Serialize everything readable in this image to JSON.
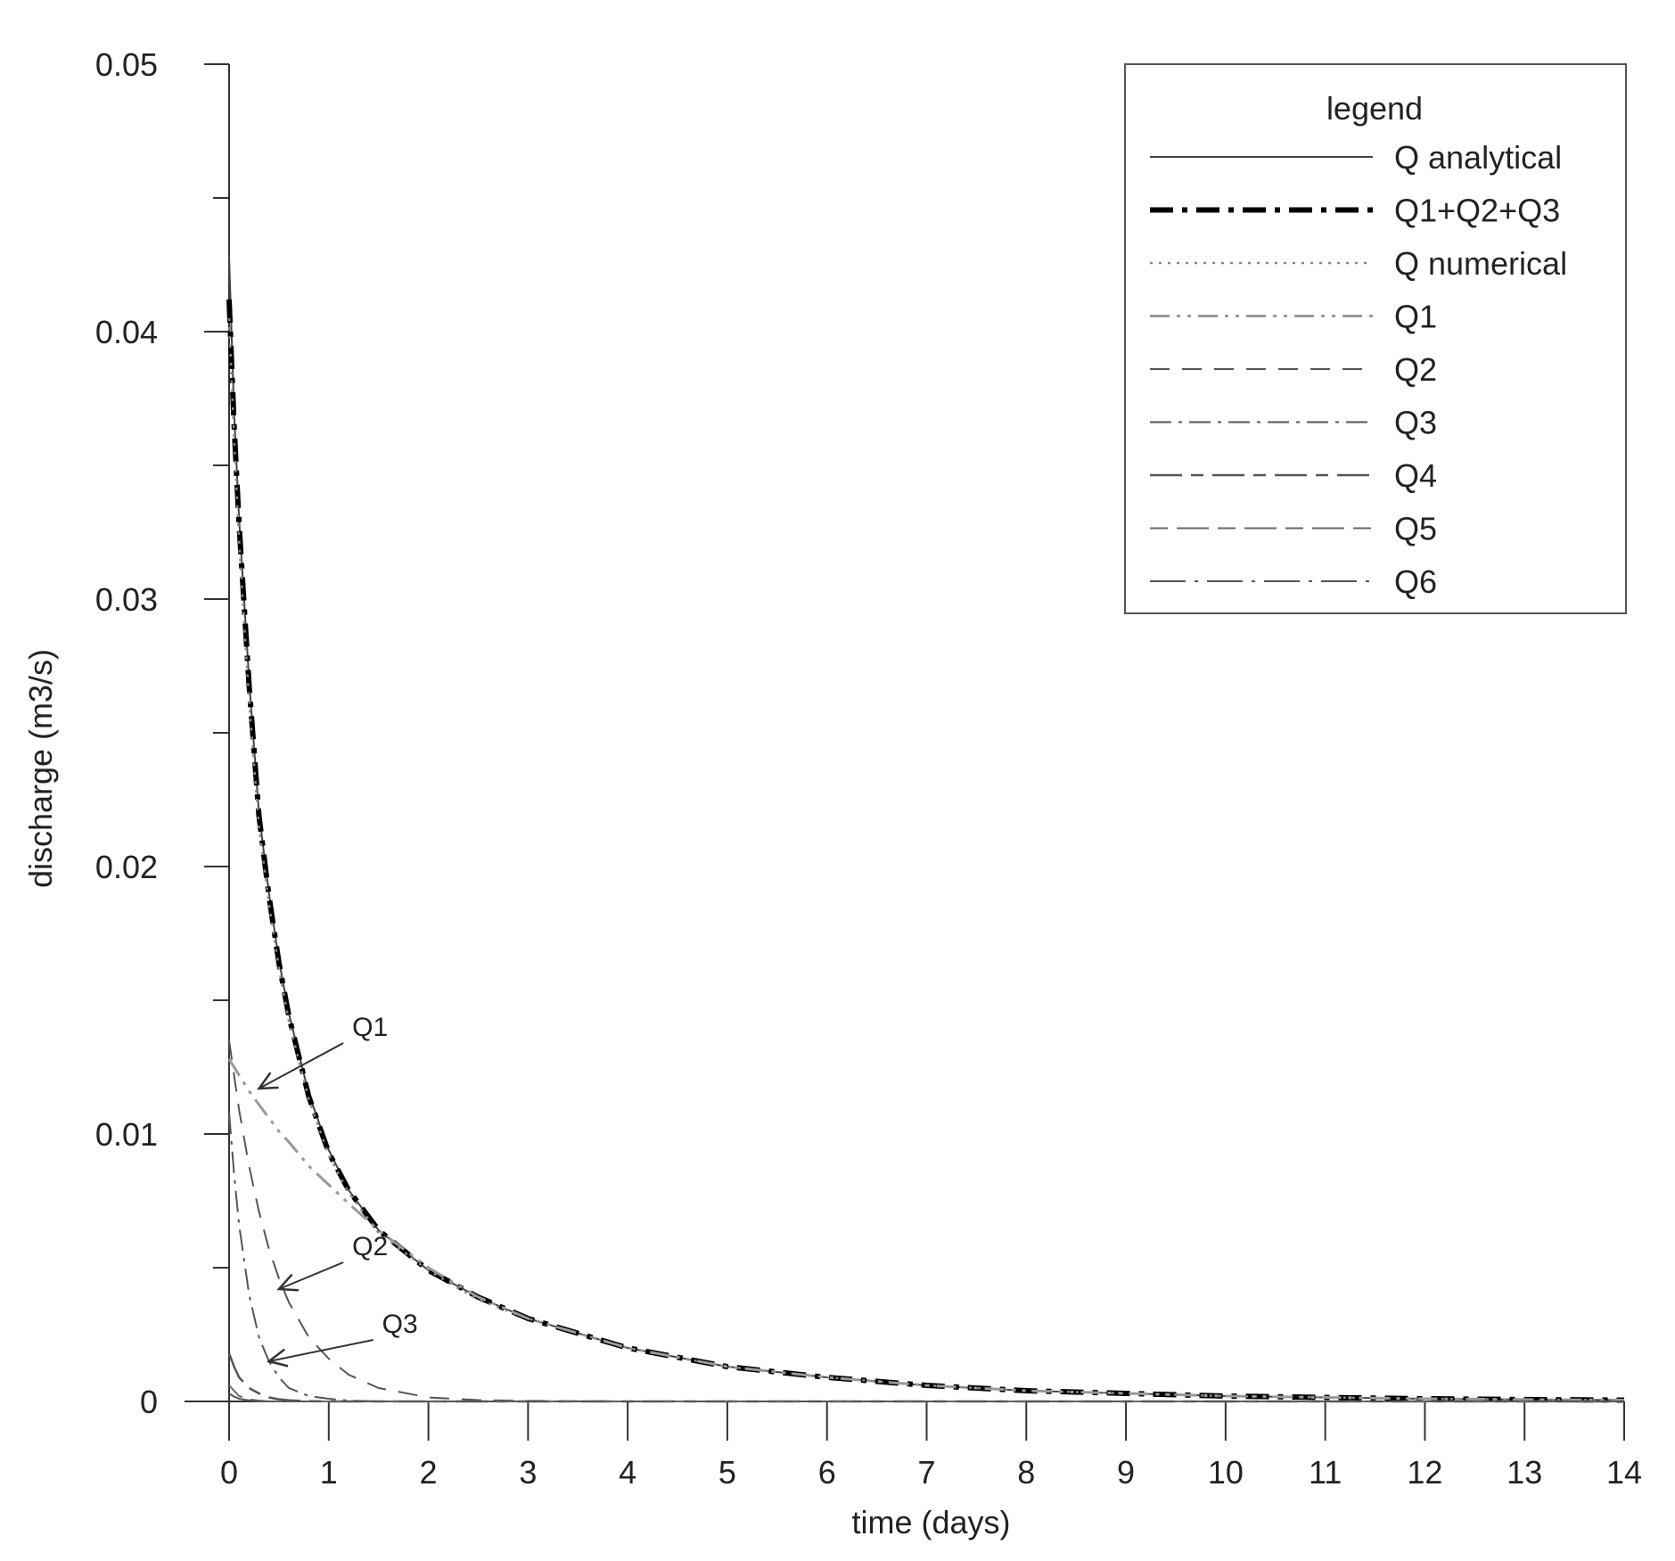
{
  "chart_data": {
    "type": "line",
    "xlabel": "time (days)",
    "ylabel": "discharge (m3/s)",
    "xlim": [
      0,
      14
    ],
    "ylim": [
      0,
      0.05
    ],
    "x_ticks": [
      "0",
      "1",
      "2",
      "3",
      "4",
      "5",
      "6",
      "7",
      "8",
      "9",
      "10",
      "11",
      "12",
      "13",
      "14"
    ],
    "y_ticks": [
      "0",
      "0.01",
      "0.02",
      "0.03",
      "0.04",
      "0.05"
    ],
    "x_tick_values": [
      0,
      1,
      2,
      3,
      4,
      5,
      6,
      7,
      8,
      9,
      10,
      11,
      12,
      13,
      14
    ],
    "y_tick_values": [
      0,
      0.01,
      0.02,
      0.03,
      0.04,
      0.05
    ],
    "grid": false,
    "legend": {
      "title": "legend",
      "placement": "top-right"
    },
    "x": [
      0,
      0.05,
      0.1,
      0.2,
      0.3,
      0.4,
      0.5,
      0.6,
      0.8,
      1.0,
      1.2,
      1.5,
      2.0,
      2.5,
      3.0,
      4.0,
      5.0,
      6.0,
      7.0,
      8.0,
      9.0,
      10.0,
      11.0,
      12.0,
      13.0,
      14.0
    ],
    "series": [
      {
        "name": "Q analytical",
        "style": "solid",
        "values": [
          0.0428,
          0.037,
          0.033,
          0.027,
          0.022,
          0.019,
          0.0165,
          0.0145,
          0.0115,
          0.0094,
          0.0079,
          0.0064,
          0.0049,
          0.0039,
          0.0031,
          0.002,
          0.0013,
          0.0009,
          0.0006,
          0.0004,
          0.0003,
          0.0002,
          0.00015,
          0.0001,
          7e-05,
          5e-05
        ]
      },
      {
        "name": "Q1+Q2+Q3",
        "style": "thick-dashdot",
        "values": [
          0.0412,
          0.0365,
          0.0328,
          0.0268,
          0.0219,
          0.0189,
          0.0164,
          0.0144,
          0.0114,
          0.0093,
          0.0079,
          0.0064,
          0.0049,
          0.0039,
          0.0031,
          0.002,
          0.0013,
          0.0009,
          0.0006,
          0.0004,
          0.0003,
          0.0002,
          0.00015,
          0.0001,
          7e-05,
          5e-05
        ]
      },
      {
        "name": "Q numerical",
        "style": "dotted",
        "values": [
          0.0405,
          0.036,
          0.0322,
          0.0262,
          0.0215,
          0.0186,
          0.0162,
          0.0142,
          0.0113,
          0.0092,
          0.0078,
          0.0063,
          0.0049,
          0.0038,
          0.0031,
          0.002,
          0.0013,
          0.0009,
          0.0006,
          0.0004,
          0.0003,
          0.0002,
          0.00015,
          0.0001,
          7e-05,
          5e-05
        ]
      },
      {
        "name": "Q1",
        "style": "dashdotdot",
        "values": [
          0.0128,
          0.0125,
          0.0122,
          0.0116,
          0.0111,
          0.0106,
          0.0101,
          0.0097,
          0.0088,
          0.0081,
          0.0074,
          0.0064,
          0.005,
          0.0039,
          0.0031,
          0.002,
          0.0013,
          0.0009,
          0.0006,
          0.0004,
          0.0003,
          0.0002,
          0.00015,
          0.0001,
          7e-05,
          5e-05
        ]
      },
      {
        "name": "Q2",
        "style": "dashed",
        "values": [
          0.0135,
          0.0122,
          0.0109,
          0.0088,
          0.0071,
          0.0057,
          0.0046,
          0.0037,
          0.0024,
          0.0016,
          0.001,
          0.0005,
          0.00015,
          5e-05,
          2e-05,
          0,
          0,
          0,
          0,
          0,
          0,
          0,
          0,
          0,
          0,
          0
        ]
      },
      {
        "name": "Q3",
        "style": "dashdot",
        "values": [
          0.0108,
          0.0085,
          0.0066,
          0.004,
          0.0024,
          0.0015,
          0.0009,
          0.0005,
          0.0002,
          0.0001,
          3e-05,
          0,
          0,
          0,
          0,
          0,
          0,
          0,
          0,
          0,
          0,
          0,
          0,
          0,
          0,
          0
        ]
      },
      {
        "name": "Q4",
        "style": "longdash-short",
        "values": [
          0.0018,
          0.0013,
          0.0009,
          0.0005,
          0.0003,
          0.00015,
          8e-05,
          4e-05,
          1e-05,
          0,
          0,
          0,
          0,
          0,
          0,
          0,
          0,
          0,
          0,
          0,
          0,
          0,
          0,
          0,
          0,
          0
        ]
      },
      {
        "name": "Q5",
        "style": "dash-longdash",
        "values": [
          0.0006,
          0.0004,
          0.0002,
          8e-05,
          3e-05,
          1e-05,
          0,
          0,
          0,
          0,
          0,
          0,
          0,
          0,
          0,
          0,
          0,
          0,
          0,
          0,
          0,
          0,
          0,
          0,
          0,
          0
        ]
      },
      {
        "name": "Q6",
        "style": "longdash-dot",
        "values": [
          0.0003,
          0.00018,
          0.0001,
          4e-05,
          1e-05,
          0,
          0,
          0,
          0,
          0,
          0,
          0,
          0,
          0,
          0,
          0,
          0,
          0,
          0,
          0,
          0,
          0,
          0,
          0,
          0,
          0
        ]
      }
    ],
    "annotations": [
      {
        "text": "Q1",
        "label_at": [
          1.2,
          0.0136
        ],
        "arrow_to": [
          0.3,
          0.0117
        ]
      },
      {
        "text": "Q2",
        "label_at": [
          1.2,
          0.0054
        ],
        "arrow_to": [
          0.5,
          0.0042
        ]
      },
      {
        "text": "Q3",
        "label_at": [
          1.5,
          0.0025
        ],
        "arrow_to": [
          0.4,
          0.0015
        ]
      }
    ]
  }
}
